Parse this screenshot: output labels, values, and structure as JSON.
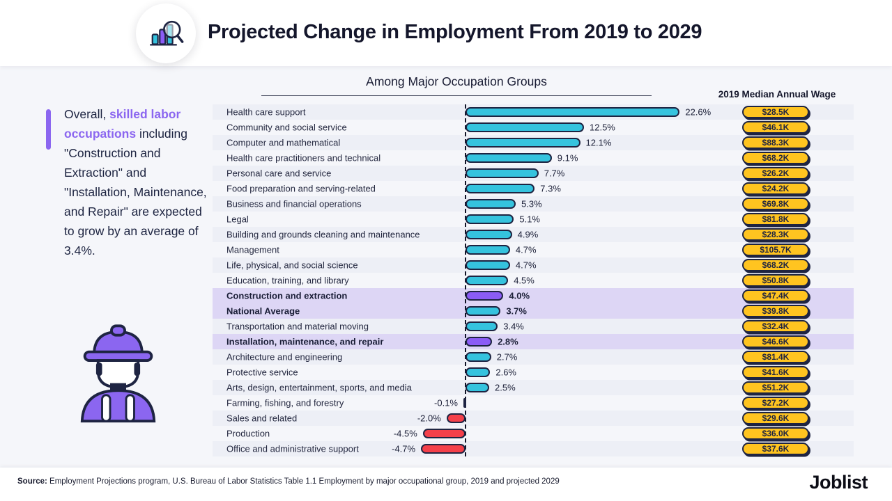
{
  "header": {
    "title": "Projected Change in Employment From 2019 to 2029",
    "icon": "bar-chart-magnifier-icon"
  },
  "chart": {
    "subtitle": "Among Major Occupation Groups",
    "wage_column_header": "2019 Median Annual Wage",
    "colors": {
      "positive": "#35c3de",
      "negative": "#f4404a",
      "highlight": "#8b5cf6",
      "wage_pill": "#ffc420",
      "outline": "#1e2442",
      "highlight_row_bg": "#ddd6f5"
    }
  },
  "callout": {
    "pre": "Overall, ",
    "highlight": "skilled labor occupations",
    "post": " including \"Construction and Extraction\" and \"Installation, Maintenance, and Repair\" are expected to grow by an average of 3.4%.",
    "highlight_color": "#8b66f0"
  },
  "footer": {
    "source_label": "Source:",
    "source_text": " Employment Projections program, U.S. Bureau of Labor Statistics Table 1.1 Employment by major occupational group, 2019 and projected 2029",
    "brand": "Joblist"
  },
  "chart_data": {
    "type": "bar",
    "orientation": "horizontal",
    "title": "Projected Change in Employment From 2019 to 2029",
    "subtitle": "Among Major Occupation Groups",
    "unit": "%",
    "xlim": [
      -6,
      24
    ],
    "legend": "none",
    "rows": [
      {
        "label": "Health care support",
        "value": 22.6,
        "display": "22.6%",
        "wage": "$28.5K",
        "kind": "positive"
      },
      {
        "label": "Community and social service",
        "value": 12.5,
        "display": "12.5%",
        "wage": "$46.1K",
        "kind": "positive"
      },
      {
        "label": "Computer and mathematical",
        "value": 12.1,
        "display": "12.1%",
        "wage": "$88.3K",
        "kind": "positive"
      },
      {
        "label": "Health care practitioners and technical",
        "value": 9.1,
        "display": "9.1%",
        "wage": "$68.2K",
        "kind": "positive"
      },
      {
        "label": "Personal care and service",
        "value": 7.7,
        "display": "7.7%",
        "wage": "$26.2K",
        "kind": "positive"
      },
      {
        "label": "Food preparation and serving-related",
        "value": 7.3,
        "display": "7.3%",
        "wage": "$24.2K",
        "kind": "positive"
      },
      {
        "label": "Business and financial operations",
        "value": 5.3,
        "display": "5.3%",
        "wage": "$69.8K",
        "kind": "positive"
      },
      {
        "label": "Legal",
        "value": 5.1,
        "display": "5.1%",
        "wage": "$81.8K",
        "kind": "positive"
      },
      {
        "label": "Building and grounds cleaning and maintenance",
        "value": 4.9,
        "display": "4.9%",
        "wage": "$28.3K",
        "kind": "positive"
      },
      {
        "label": "Management",
        "value": 4.7,
        "display": "4.7%",
        "wage": "$105.7K",
        "kind": "positive"
      },
      {
        "label": "Life, physical, and social science",
        "value": 4.7,
        "display": "4.7%",
        "wage": "$68.2K",
        "kind": "positive"
      },
      {
        "label": "Education, training, and library",
        "value": 4.5,
        "display": "4.5%",
        "wage": "$50.8K",
        "kind": "positive"
      },
      {
        "label": "Construction and extraction",
        "value": 4.0,
        "display": "4.0%",
        "wage": "$47.4K",
        "kind": "highlight"
      },
      {
        "label": "National Average",
        "value": 3.7,
        "display": "3.7%",
        "wage": "$39.8K",
        "kind": "average"
      },
      {
        "label": "Transportation and material moving",
        "value": 3.4,
        "display": "3.4%",
        "wage": "$32.4K",
        "kind": "positive"
      },
      {
        "label": "Installation, maintenance, and repair",
        "value": 2.8,
        "display": "2.8%",
        "wage": "$46.6K",
        "kind": "highlight"
      },
      {
        "label": "Architecture and engineering",
        "value": 2.7,
        "display": "2.7%",
        "wage": "$81.4K",
        "kind": "positive"
      },
      {
        "label": "Protective service",
        "value": 2.6,
        "display": "2.6%",
        "wage": "$41.6K",
        "kind": "positive"
      },
      {
        "label": "Arts, design, entertainment, sports, and media",
        "value": 2.5,
        "display": "2.5%",
        "wage": "$51.2K",
        "kind": "positive"
      },
      {
        "label": "Farming, fishing, and forestry",
        "value": -0.1,
        "display": "-0.1%",
        "wage": "$27.2K",
        "kind": "negative"
      },
      {
        "label": "Sales and related",
        "value": -2.0,
        "display": "-2.0%",
        "wage": "$29.6K",
        "kind": "negative"
      },
      {
        "label": "Production",
        "value": -4.5,
        "display": "-4.5%",
        "wage": "$36.0K",
        "kind": "negative"
      },
      {
        "label": "Office and administrative support",
        "value": -4.7,
        "display": "-4.7%",
        "wage": "$37.6K",
        "kind": "negative"
      }
    ]
  }
}
